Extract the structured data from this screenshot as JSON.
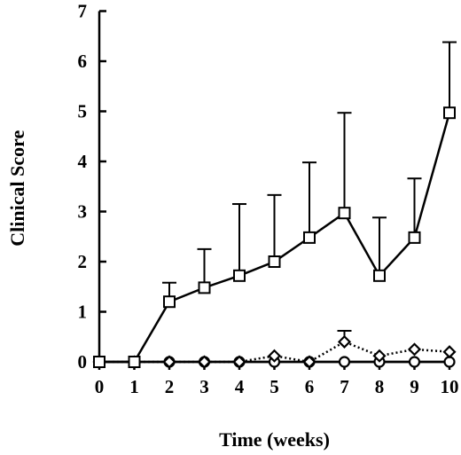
{
  "chart_data": {
    "type": "line",
    "xlabel": "Time (weeks)",
    "ylabel": "Clinical Score",
    "xlim": [
      0,
      10
    ],
    "ylim": [
      0,
      7
    ],
    "x_ticks": [
      0,
      1,
      2,
      3,
      4,
      5,
      6,
      7,
      8,
      9,
      10
    ],
    "y_ticks": [
      0,
      1,
      2,
      3,
      4,
      5,
      6,
      7
    ],
    "grid": false,
    "legend": "none",
    "series": [
      {
        "marker": "square",
        "line_style": "solid",
        "x": [
          0,
          1,
          2,
          3,
          4,
          5,
          6,
          7,
          8,
          9,
          10
        ],
        "y": [
          0,
          0,
          1.2,
          1.48,
          1.72,
          2.0,
          2.48,
          2.97,
          1.72,
          2.48,
          4.97
        ],
        "error_upper": [
          null,
          null,
          1.58,
          2.25,
          3.15,
          3.33,
          3.98,
          4.97,
          2.88,
          3.66,
          6.38
        ]
      },
      {
        "marker": "diamond",
        "line_style": "dotted",
        "x": [
          0,
          1,
          2,
          3,
          4,
          5,
          6,
          7,
          8,
          9,
          10
        ],
        "y": [
          0,
          0,
          0,
          0,
          0,
          0.12,
          0,
          0.4,
          0.12,
          0.25,
          0.2
        ],
        "error_upper": [
          null,
          null,
          null,
          null,
          null,
          null,
          null,
          0.62,
          null,
          null,
          null
        ]
      },
      {
        "marker": "circle",
        "line_style": "solid",
        "x": [
          0,
          1,
          2,
          3,
          4,
          5,
          6,
          7,
          8,
          9,
          10
        ],
        "y": [
          0,
          0,
          0,
          0,
          0,
          0,
          0,
          0,
          0,
          0,
          0
        ],
        "error_upper": [
          null,
          null,
          null,
          null,
          null,
          null,
          null,
          null,
          null,
          null,
          null
        ]
      }
    ]
  }
}
